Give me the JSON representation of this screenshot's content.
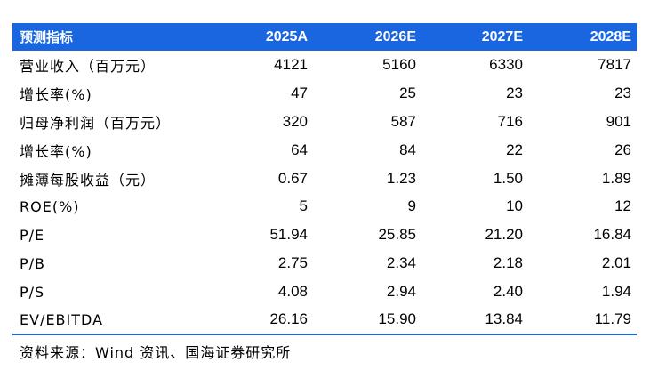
{
  "header": [
    "预测指标",
    "2025A",
    "2026E",
    "2027E",
    "2028E"
  ],
  "rows": [
    [
      "营业收入（百万元）",
      "4121",
      "5160",
      "6330",
      "7817"
    ],
    [
      "增长率(%)",
      "47",
      "25",
      "23",
      "23"
    ],
    [
      "归母净利润（百万元）",
      "320",
      "587",
      "716",
      "901"
    ],
    [
      "增长率(%)",
      "64",
      "84",
      "22",
      "26"
    ],
    [
      "摊薄每股收益（元）",
      "0.67",
      "1.23",
      "1.50",
      "1.89"
    ],
    [
      "ROE(%)",
      "5",
      "9",
      "10",
      "12"
    ],
    [
      "P/E",
      "51.94",
      "25.85",
      "21.20",
      "16.84"
    ],
    [
      "P/B",
      "2.75",
      "2.34",
      "2.18",
      "2.01"
    ],
    [
      "P/S",
      "4.08",
      "2.94",
      "2.40",
      "1.94"
    ],
    [
      "EV/EBITDA",
      "26.16",
      "15.90",
      "13.84",
      "11.79"
    ]
  ],
  "source": "资料来源：Wind 资讯、国海证券研究所",
  "colors": {
    "header_bg": "#1a66e0",
    "header_text": "#ffffff",
    "rule": "#1a66e0"
  }
}
